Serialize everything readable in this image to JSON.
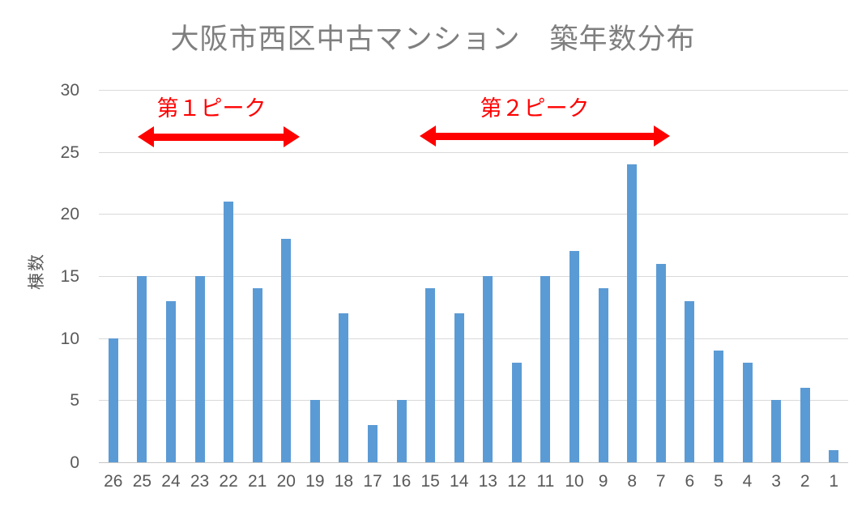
{
  "chart_data": {
    "type": "bar",
    "title": "大阪市西区中古マンション　築年数分布",
    "ylabel": "棟数",
    "xlabel": "",
    "categories": [
      "26",
      "25",
      "24",
      "23",
      "22",
      "21",
      "20",
      "19",
      "18",
      "17",
      "16",
      "15",
      "14",
      "13",
      "12",
      "11",
      "10",
      "9",
      "8",
      "7",
      "6",
      "5",
      "4",
      "3",
      "2",
      "1"
    ],
    "values": [
      10,
      15,
      13,
      15,
      21,
      14,
      18,
      5,
      12,
      3,
      5,
      14,
      12,
      15,
      8,
      15,
      17,
      14,
      24,
      16,
      13,
      9,
      8,
      5,
      6,
      1
    ],
    "ylim": [
      0,
      30
    ],
    "yticks": [
      30,
      25,
      20,
      15,
      10,
      5,
      0
    ],
    "grid": true,
    "legend": false,
    "bar_color": "#5b9bd5",
    "gridline_color": "#d9d9d9",
    "tick_color": "#595959",
    "title_color": "#7f7f7f",
    "annotations": [
      {
        "label": "第１ピーク",
        "color": "#ff0000",
        "shape": "double-headed-arrow",
        "x_range": [
          "25",
          "20"
        ]
      },
      {
        "label": "第２ピーク",
        "color": "#ff0000",
        "shape": "double-headed-arrow",
        "x_range": [
          "15",
          "7"
        ]
      }
    ]
  }
}
